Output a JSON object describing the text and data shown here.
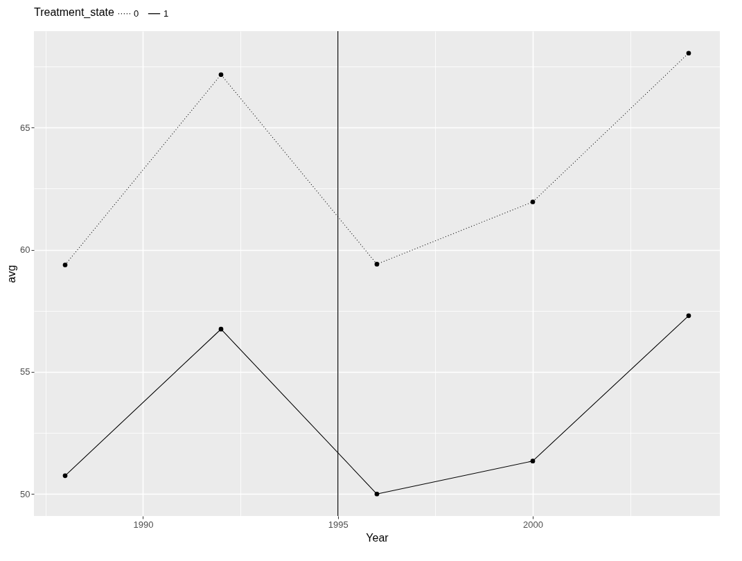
{
  "chart_data": {
    "type": "line",
    "x": [
      1988,
      1992,
      1996,
      2000,
      2004
    ],
    "series": [
      {
        "name": "0",
        "color": "#000000",
        "line_style": "dotted",
        "values": [
          59.38,
          67.17,
          59.41,
          61.96,
          68.05
        ]
      },
      {
        "name": "1",
        "color": "#000000",
        "line_style": "solid",
        "values": [
          50.75,
          56.75,
          50.0,
          51.35,
          57.3
        ]
      }
    ],
    "xlabel": "Year",
    "ylabel": "avg",
    "legend_title": "Treatment_state",
    "xlim": [
      1987.2,
      2004.8
    ],
    "ylim": [
      49.1,
      68.95
    ],
    "xticks": [
      {
        "value": 1987.5,
        "label": null
      },
      1990,
      {
        "value": 1992.5,
        "label": null
      },
      1995,
      {
        "value": 1997.5,
        "label": null
      },
      2000,
      {
        "value": 2002.5,
        "label": null
      }
    ],
    "yticks": [
      50,
      {
        "value": 52.5,
        "label": null
      },
      55,
      {
        "value": 57.5,
        "label": null
      },
      60,
      {
        "value": 62.5,
        "label": null
      },
      65,
      {
        "value": 67.5,
        "label": null
      }
    ],
    "ref_lines": [
      {
        "axis": "x",
        "value": 1995,
        "color": "#000000"
      }
    ],
    "grid": true,
    "legend": "top",
    "marker": "circle"
  }
}
